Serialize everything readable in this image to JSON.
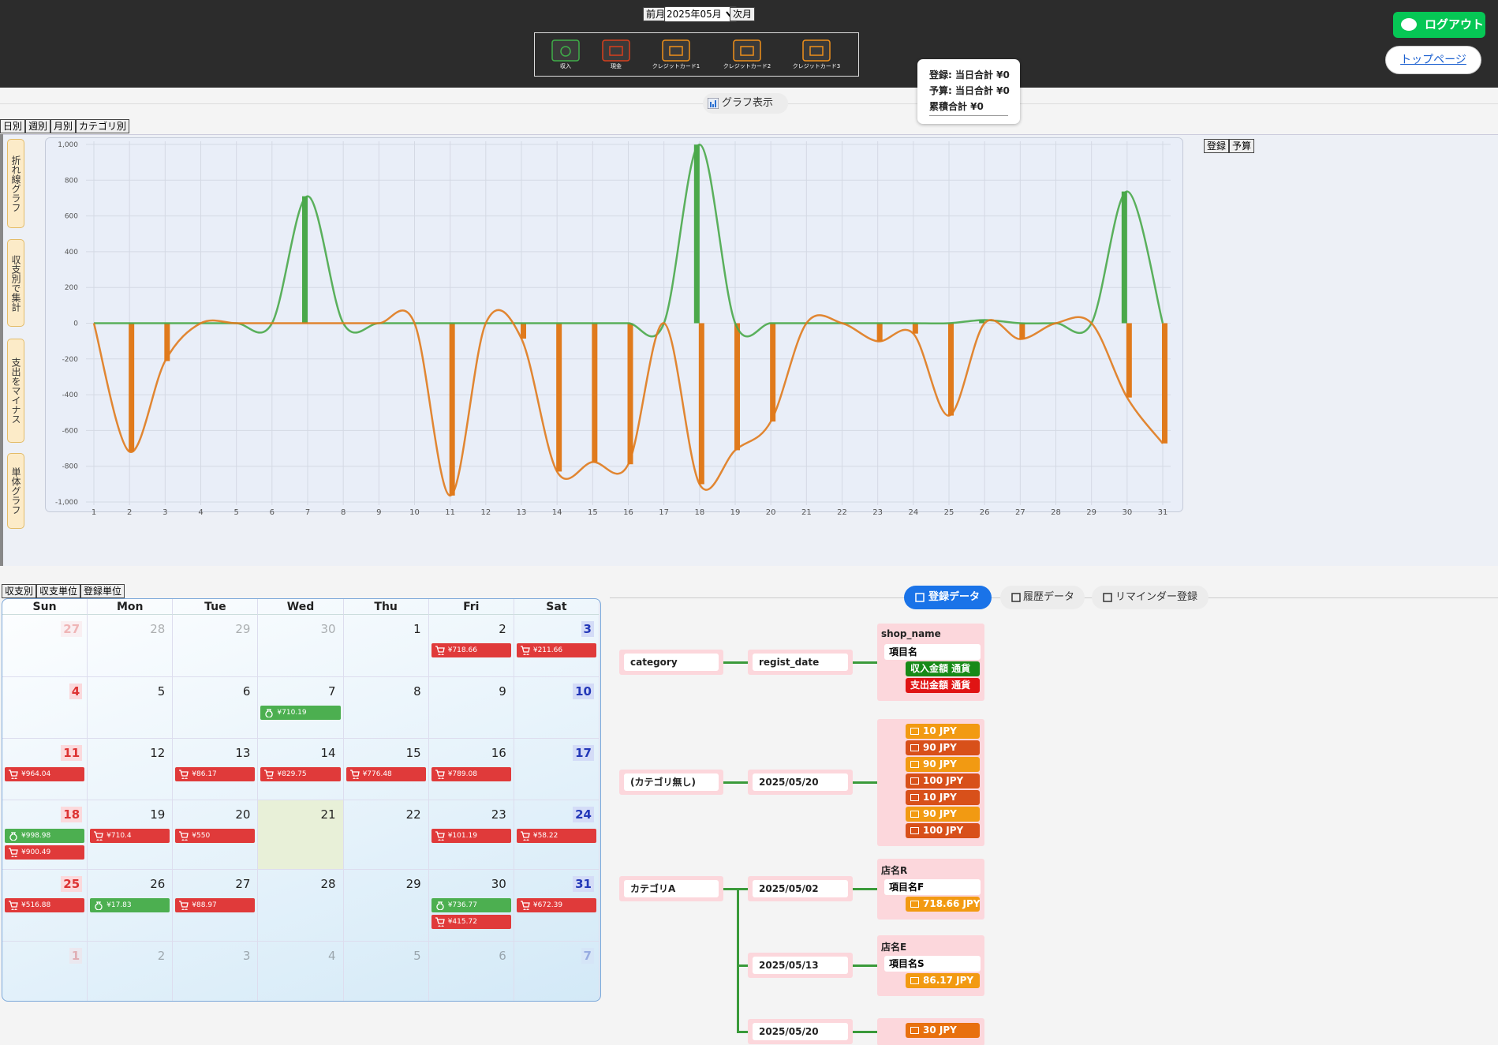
{
  "header": {
    "prev": "前月",
    "month": "2025年05月",
    "next": "次月",
    "payment_icons": [
      {
        "label": "収入",
        "color": "#3fae49"
      },
      {
        "label": "現金",
        "color": "#d8401c"
      },
      {
        "label": "クレジットカード1",
        "color": "#f0901a"
      },
      {
        "label": "クレジットカード2",
        "color": "#f0901a"
      },
      {
        "label": "クレジットカード3",
        "color": "#f0901a"
      }
    ],
    "logout": "ログアウト",
    "top_page": "トップページ"
  },
  "tooltip": [
    "登録: 当日合計 ¥0",
    "予算: 当日合計 ¥0",
    "累積合計 ¥0"
  ],
  "graph_toggle": "グラフ表示",
  "graph_tabs": [
    "日別",
    "週別",
    "月別",
    "カテゴリ別"
  ],
  "side_buttons": [
    "折れ線グラフ",
    "収支別で集計",
    "支出をマイナス",
    "単体グラフ"
  ],
  "chart_buttons": [
    "登録",
    "予算"
  ],
  "chart_data": {
    "type": "bar",
    "line": true,
    "grid": true,
    "categories": [
      "1",
      "2",
      "3",
      "4",
      "5",
      "6",
      "7",
      "8",
      "9",
      "10",
      "11",
      "12",
      "13",
      "14",
      "15",
      "16",
      "17",
      "18",
      "19",
      "20",
      "21",
      "22",
      "23",
      "24",
      "25",
      "26",
      "27",
      "28",
      "29",
      "30",
      "31"
    ],
    "series": [
      {
        "color": "#4aa84a",
        "values": [
          0,
          0,
          0,
          0,
          0,
          0,
          710.19,
          0,
          0,
          0,
          0,
          0,
          0,
          0,
          0,
          0,
          0,
          998.98,
          0,
          0,
          0,
          0,
          0,
          0,
          0,
          17.83,
          0,
          0,
          0,
          736.77,
          0
        ]
      },
      {
        "color": "#e07a1c",
        "values": [
          0,
          -718.66,
          -211.66,
          0,
          0,
          0,
          0,
          0,
          0,
          0,
          -964.04,
          0,
          -86.17,
          -829.75,
          -776.48,
          -789.08,
          0,
          -900.49,
          -710.4,
          -550,
          0,
          0,
          -101.19,
          -58.22,
          -516.88,
          0,
          -88.97,
          0,
          0,
          -415.72,
          -672.39
        ]
      }
    ],
    "ylim": [
      -1000,
      1000
    ],
    "yticks": [
      {
        "value": 1000,
        "label": "1,000"
      },
      800,
      600,
      400,
      200,
      0,
      -200,
      -400,
      -600,
      -800,
      {
        "value": -1000,
        "label": "-1,000"
      }
    ]
  },
  "calendar": {
    "tabs": [
      "収支別",
      "収支単位",
      "登録単位"
    ],
    "weekdays": [
      "Sun",
      "Mon",
      "Tue",
      "Wed",
      "Thu",
      "Fri",
      "Sat"
    ],
    "today": 21,
    "weeks": [
      [
        {
          "day": 27
        },
        {
          "day": 28
        },
        {
          "day": 29
        },
        {
          "day": 30
        },
        {
          "day": 1
        },
        {
          "day": 2,
          "items": [
            {
              "label": "¥718.66",
              "color": "#e03a3a"
            }
          ]
        },
        {
          "day": 3,
          "items": [
            {
              "label": "¥211.66",
              "color": "#e03a3a"
            }
          ]
        }
      ],
      [
        {
          "day": 4
        },
        {
          "day": 5
        },
        {
          "day": 6
        },
        {
          "day": 7,
          "items": [
            {
              "label": "¥710.19",
              "color": "#4caf50"
            }
          ]
        },
        {
          "day": 8
        },
        {
          "day": 9
        },
        {
          "day": 10
        }
      ],
      [
        {
          "day": 11,
          "items": [
            {
              "label": "¥964.04",
              "color": "#e03a3a"
            }
          ]
        },
        {
          "day": 12
        },
        {
          "day": 13,
          "items": [
            {
              "label": "¥86.17",
              "color": "#e03a3a"
            }
          ]
        },
        {
          "day": 14,
          "items": [
            {
              "label": "¥829.75",
              "color": "#e03a3a"
            }
          ]
        },
        {
          "day": 15,
          "items": [
            {
              "label": "¥776.48",
              "color": "#e03a3a"
            }
          ]
        },
        {
          "day": 16,
          "items": [
            {
              "label": "¥789.08",
              "color": "#e03a3a"
            }
          ]
        },
        {
          "day": 17
        }
      ],
      [
        {
          "day": 18,
          "items": [
            {
              "label": "¥998.98",
              "color": "#4caf50"
            },
            {
              "label": "¥900.49",
              "color": "#e03a3a"
            }
          ]
        },
        {
          "day": 19,
          "items": [
            {
              "label": "¥710.4",
              "color": "#e03a3a"
            }
          ]
        },
        {
          "day": 20,
          "items": [
            {
              "label": "¥550",
              "color": "#e03a3a"
            }
          ]
        },
        {
          "day": 21
        },
        {
          "day": 22
        },
        {
          "day": 23,
          "items": [
            {
              "label": "¥101.19",
              "color": "#e03a3a"
            }
          ]
        },
        {
          "day": 24,
          "items": [
            {
              "label": "¥58.22",
              "color": "#e03a3a"
            }
          ]
        }
      ],
      [
        {
          "day": 25,
          "items": [
            {
              "label": "¥516.88",
              "color": "#e03a3a"
            }
          ]
        },
        {
          "day": 26,
          "items": [
            {
              "label": "¥17.83",
              "color": "#4caf50"
            }
          ]
        },
        {
          "day": 27,
          "items": [
            {
              "label": "¥88.97",
              "color": "#e03a3a"
            }
          ]
        },
        {
          "day": 28
        },
        {
          "day": 29
        },
        {
          "day": 30,
          "items": [
            {
              "label": "¥736.77",
              "color": "#4caf50"
            },
            {
              "label": "¥415.72",
              "color": "#e03a3a"
            }
          ]
        },
        {
          "day": 31,
          "items": [
            {
              "label": "¥672.39",
              "color": "#e03a3a"
            }
          ]
        }
      ],
      [
        {
          "day": 1
        },
        {
          "day": 2
        },
        {
          "day": 3
        },
        {
          "day": 4
        },
        {
          "day": 5
        },
        {
          "day": 6
        },
        {
          "day": 7
        }
      ]
    ]
  },
  "data_tabs": [
    "登録データ",
    "履歴データ",
    "リマインダー登録"
  ],
  "tree": {
    "header": {
      "category": "category",
      "date": "regist_date",
      "shop": "shop_name",
      "item": "項目名",
      "badges": [
        {
          "label": "収入金額 通貨",
          "color": "#178a17"
        },
        {
          "label": "支出金額 通貨",
          "color": "#e01414"
        }
      ]
    },
    "groups": [
      {
        "category": "(カテゴリ無し)",
        "dates": [
          {
            "date": "2025/05/20",
            "badges": [
              {
                "label": "10 JPY",
                "color": "#f29a12"
              },
              {
                "label": "90 JPY",
                "color": "#d8501a"
              },
              {
                "label": "90 JPY",
                "color": "#f29a12"
              },
              {
                "label": "100 JPY",
                "color": "#d8501a"
              },
              {
                "label": "10 JPY",
                "color": "#d8501a"
              },
              {
                "label": "90 JPY",
                "color": "#f29a12"
              },
              {
                "label": "100 JPY",
                "color": "#d8501a"
              }
            ]
          }
        ]
      },
      {
        "category": "カテゴリA",
        "dates": [
          {
            "date": "2025/05/02",
            "shop": "店名R",
            "item": "項目名F",
            "badges": [
              {
                "label": "718.66 JPY",
                "color": "#f29a12"
              }
            ]
          },
          {
            "date": "2025/05/13",
            "shop": "店名E",
            "item": "項目名S",
            "badges": [
              {
                "label": "86.17 JPY",
                "color": "#f29a12"
              }
            ]
          },
          {
            "date": "2025/05/20",
            "badges": [
              {
                "label": "30 JPY",
                "color": "#e8700f"
              }
            ]
          }
        ]
      }
    ]
  }
}
